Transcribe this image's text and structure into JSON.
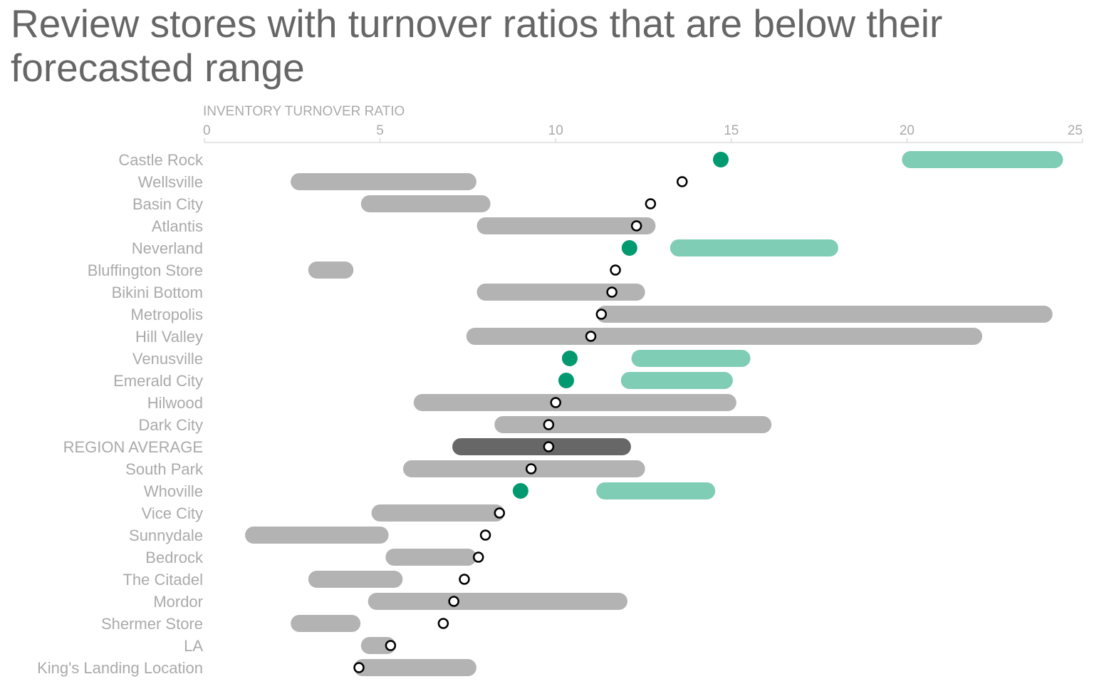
{
  "title": "Review stores with turnover ratios that are below their forecasted range",
  "colors": {
    "title": "#666666",
    "label": "#aaaaaa",
    "axis": "#cccccc",
    "range_normal": "#b3b3b3",
    "range_below": "#80cdb6",
    "range_average": "#676767",
    "dot_below": "#009970",
    "dot_normal_fill": "#ffffff",
    "dot_normal_stroke": "#000000"
  },
  "chart_data": {
    "type": "range-dot",
    "xlabel": "INVENTORY TURNOVER RATIO",
    "xlim": [
      0,
      25
    ],
    "xticks": [
      0,
      5,
      10,
      15,
      20,
      25
    ],
    "legend": "none",
    "grid": false,
    "stores": [
      {
        "name": "Castle Rock",
        "low": 20.1,
        "high": 24.2,
        "actual": 14.7,
        "status": "below"
      },
      {
        "name": "Wellsville",
        "low": 2.7,
        "high": 7.5,
        "actual": 13.6,
        "status": "normal"
      },
      {
        "name": "Basin City",
        "low": 4.7,
        "high": 7.9,
        "actual": 12.7,
        "status": "normal"
      },
      {
        "name": "Atlantis",
        "low": 8.0,
        "high": 12.6,
        "actual": 12.3,
        "status": "normal"
      },
      {
        "name": "Neverland",
        "low": 13.5,
        "high": 17.8,
        "actual": 12.1,
        "status": "below"
      },
      {
        "name": "Bluffington Store",
        "low": 3.2,
        "high": 4.0,
        "actual": 11.7,
        "status": "normal"
      },
      {
        "name": "Bikini Bottom",
        "low": 8.0,
        "high": 12.3,
        "actual": 11.6,
        "status": "normal"
      },
      {
        "name": "Metropolis",
        "low": 11.4,
        "high": 23.9,
        "actual": 11.3,
        "status": "normal"
      },
      {
        "name": "Hill Valley",
        "low": 7.7,
        "high": 21.9,
        "actual": 11.0,
        "status": "normal"
      },
      {
        "name": "Venusville",
        "low": 12.4,
        "high": 15.3,
        "actual": 10.4,
        "status": "below"
      },
      {
        "name": "Emerald City",
        "low": 12.1,
        "high": 14.8,
        "actual": 10.3,
        "status": "below"
      },
      {
        "name": "Hilwood",
        "low": 6.2,
        "high": 14.9,
        "actual": 10.0,
        "status": "normal"
      },
      {
        "name": "Dark City",
        "low": 8.5,
        "high": 15.9,
        "actual": 9.8,
        "status": "normal"
      },
      {
        "name": "REGION AVERAGE",
        "low": 7.3,
        "high": 11.9,
        "actual": 9.8,
        "status": "average"
      },
      {
        "name": "South Park",
        "low": 5.9,
        "high": 12.3,
        "actual": 9.3,
        "status": "normal"
      },
      {
        "name": "Whoville",
        "low": 11.4,
        "high": 14.3,
        "actual": 9.0,
        "status": "below"
      },
      {
        "name": "Vice City",
        "low": 5.0,
        "high": 8.3,
        "actual": 8.4,
        "status": "normal"
      },
      {
        "name": "Sunnydale",
        "low": 1.4,
        "high": 5.0,
        "actual": 8.0,
        "status": "normal"
      },
      {
        "name": "Bedrock",
        "low": 5.4,
        "high": 7.5,
        "actual": 7.8,
        "status": "normal"
      },
      {
        "name": "The Citadel",
        "low": 3.2,
        "high": 5.4,
        "actual": 7.4,
        "status": "normal"
      },
      {
        "name": "Mordor",
        "low": 4.9,
        "high": 11.8,
        "actual": 7.1,
        "status": "normal"
      },
      {
        "name": "Shermer Store",
        "low": 2.7,
        "high": 4.2,
        "actual": 6.8,
        "status": "normal"
      },
      {
        "name": "LA",
        "low": 4.7,
        "high": 5.2,
        "actual": 5.3,
        "status": "normal"
      },
      {
        "name": "King's Landing Location",
        "low": 4.5,
        "high": 7.5,
        "actual": 4.4,
        "status": "normal"
      }
    ]
  }
}
